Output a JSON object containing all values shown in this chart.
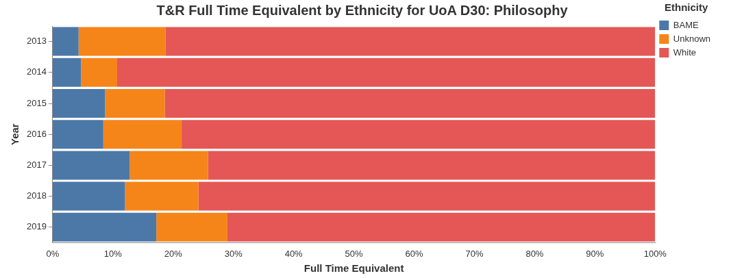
{
  "chart_data": {
    "type": "bar",
    "title": "T&R Full Time Equivalent by Ethnicity for UoA D30: Philosophy",
    "xlabel": "Full Time Equivalent",
    "ylabel": "Year",
    "legend_title": "Ethnicity",
    "orientation": "horizontal",
    "stacked": true,
    "legend": "top right",
    "grid": false,
    "categories": [
      "2013",
      "2014",
      "2015",
      "2016",
      "2017",
      "2018",
      "2019"
    ],
    "series": [
      {
        "name": "BAME",
        "color": "#4c78a8",
        "values": [
          4.3,
          4.7,
          8.7,
          8.4,
          12.8,
          12.0,
          17.2
        ]
      },
      {
        "name": "Unknown",
        "color": "#f58518",
        "values": [
          14.4,
          6.0,
          9.9,
          13.0,
          13.0,
          12.2,
          11.8
        ]
      },
      {
        "name": "White",
        "color": "#e45756",
        "values": [
          81.3,
          89.3,
          81.4,
          78.6,
          74.2,
          75.8,
          71.0
        ]
      }
    ],
    "xlim": [
      0,
      100
    ],
    "xticks": [
      {
        "value": 0,
        "label": "0%"
      },
      {
        "value": 10,
        "label": "10%"
      },
      {
        "value": 20,
        "label": "20%"
      },
      {
        "value": 30,
        "label": "30%"
      },
      {
        "value": 40,
        "label": "40%"
      },
      {
        "value": 50,
        "label": "50%"
      },
      {
        "value": 60,
        "label": "60%"
      },
      {
        "value": 70,
        "label": "70%"
      },
      {
        "value": 80,
        "label": "80%"
      },
      {
        "value": 90,
        "label": "90%"
      },
      {
        "value": 100,
        "label": "100%"
      }
    ]
  }
}
